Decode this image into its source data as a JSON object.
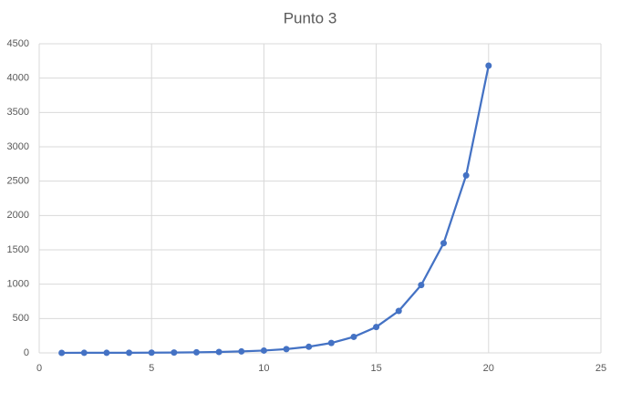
{
  "chart_data": {
    "type": "scatter-line",
    "title": "Punto 3",
    "x": [
      1,
      2,
      3,
      4,
      5,
      6,
      7,
      8,
      9,
      10,
      11,
      12,
      13,
      14,
      15,
      16,
      17,
      18,
      19,
      20
    ],
    "values": [
      0,
      1,
      1,
      2,
      3,
      5,
      8,
      13,
      21,
      34,
      55,
      89,
      144,
      233,
      377,
      610,
      987,
      1597,
      2584,
      4181
    ],
    "color": "#4472c4",
    "xlim": [
      0,
      25
    ],
    "xticks": [
      0,
      5,
      10,
      15,
      20,
      25
    ],
    "ylim": [
      0,
      4500
    ],
    "yticks": [
      0,
      500,
      1000,
      1500,
      2000,
      2500,
      3000,
      3500,
      4000,
      4500
    ],
    "grid": true
  }
}
